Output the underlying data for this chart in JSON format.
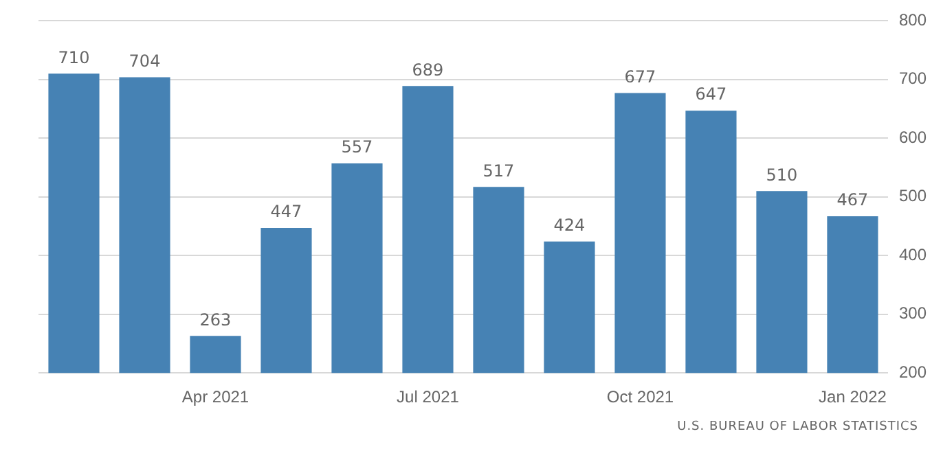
{
  "chart_data": {
    "type": "bar",
    "categories": [
      null,
      null,
      "Apr 2021",
      null,
      null,
      "Jul 2021",
      null,
      null,
      "Oct 2021",
      null,
      null,
      "Jan 2022"
    ],
    "values": [
      710,
      704,
      263,
      447,
      557,
      689,
      517,
      424,
      677,
      647,
      510,
      467
    ],
    "color": "#4682b4",
    "ylim": [
      200,
      800
    ],
    "yticks": [
      200,
      300,
      400,
      500,
      600,
      700,
      800
    ],
    "grid": "y",
    "data_labels": true,
    "annotations": [
      "U.S. BUREAU OF LABOR STATISTICS"
    ]
  }
}
